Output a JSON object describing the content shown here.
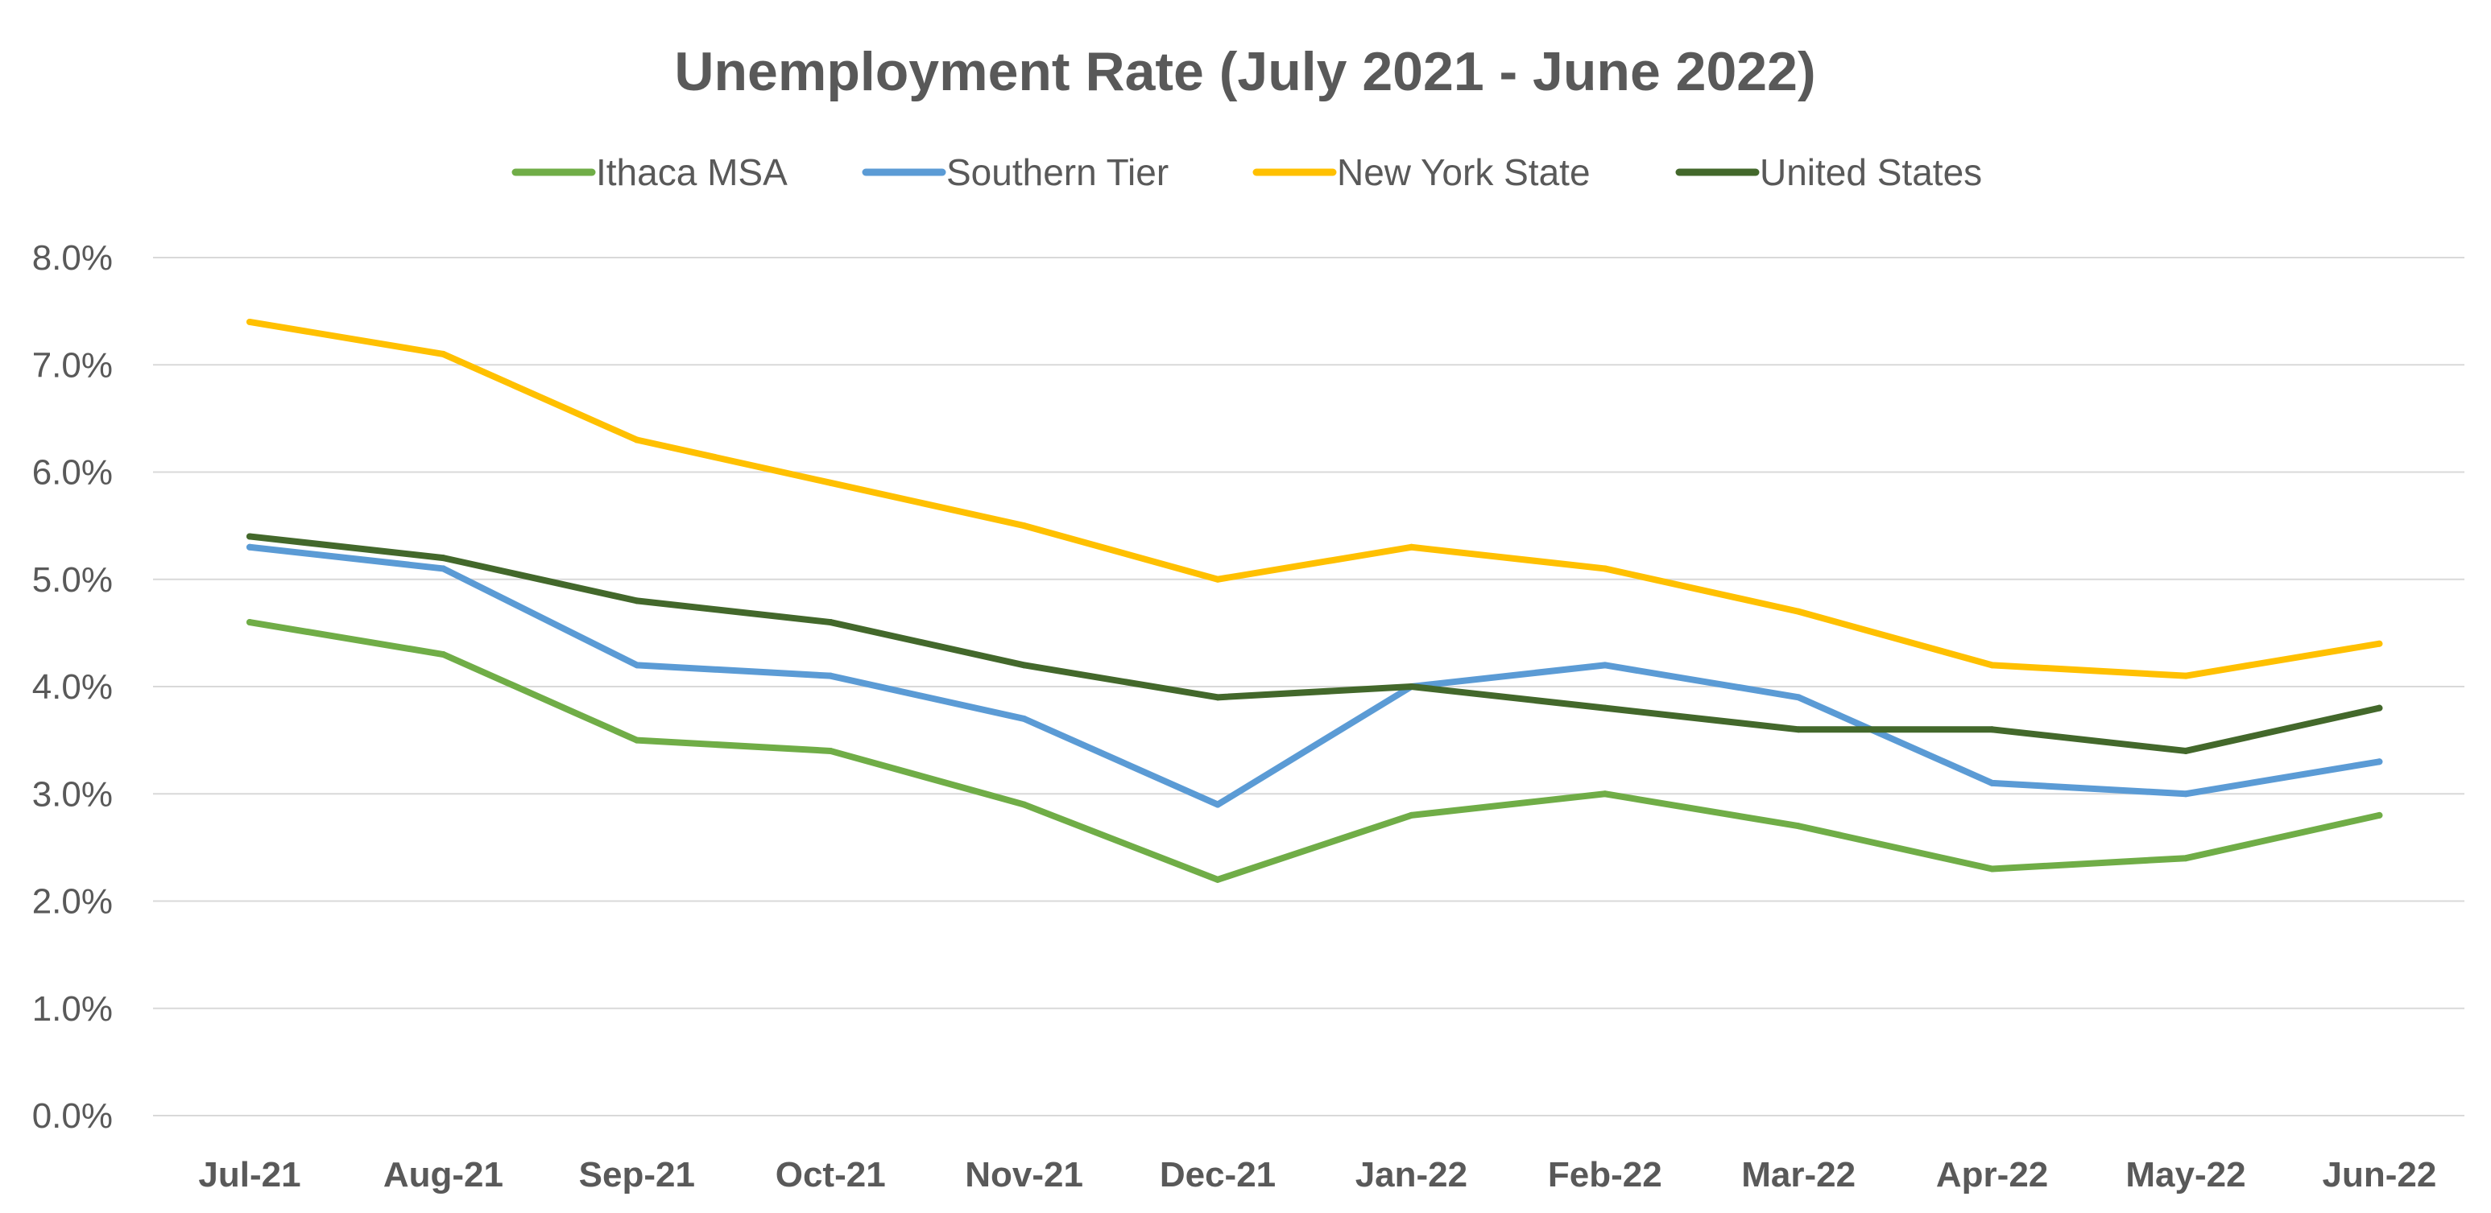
{
  "chart_data": {
    "type": "line",
    "title": "Unemployment Rate (July 2021 - June 2022)",
    "xlabel": "",
    "ylabel": "",
    "categories": [
      "Jul-21",
      "Aug-21",
      "Sep-21",
      "Oct-21",
      "Nov-21",
      "Dec-21",
      "Jan-22",
      "Feb-22",
      "Mar-22",
      "Apr-22",
      "May-22",
      "Jun-22"
    ],
    "ylim": [
      0,
      8
    ],
    "yticks": [
      "0.0%",
      "1.0%",
      "2.0%",
      "3.0%",
      "4.0%",
      "5.0%",
      "6.0%",
      "7.0%",
      "8.0%"
    ],
    "grid": true,
    "legend_position": "top",
    "series": [
      {
        "name": "Ithaca MSA",
        "color": "#70ad47",
        "values": [
          4.6,
          4.3,
          3.5,
          3.4,
          2.9,
          2.2,
          2.8,
          3.0,
          2.7,
          2.3,
          2.4,
          2.8
        ]
      },
      {
        "name": "Southern Tier",
        "color": "#5b9bd5",
        "values": [
          5.3,
          5.1,
          4.2,
          4.1,
          3.7,
          2.9,
          4.0,
          4.2,
          3.9,
          3.1,
          3.0,
          3.3
        ]
      },
      {
        "name": "New York State",
        "color": "#ffc000",
        "values": [
          7.4,
          7.1,
          6.3,
          5.9,
          5.5,
          5.0,
          5.3,
          5.1,
          4.7,
          4.2,
          4.1,
          4.4
        ]
      },
      {
        "name": "United States",
        "color": "#43682b",
        "values": [
          5.4,
          5.2,
          4.8,
          4.6,
          4.2,
          3.9,
          4.0,
          3.8,
          3.6,
          3.6,
          3.4,
          3.8
        ]
      }
    ]
  }
}
